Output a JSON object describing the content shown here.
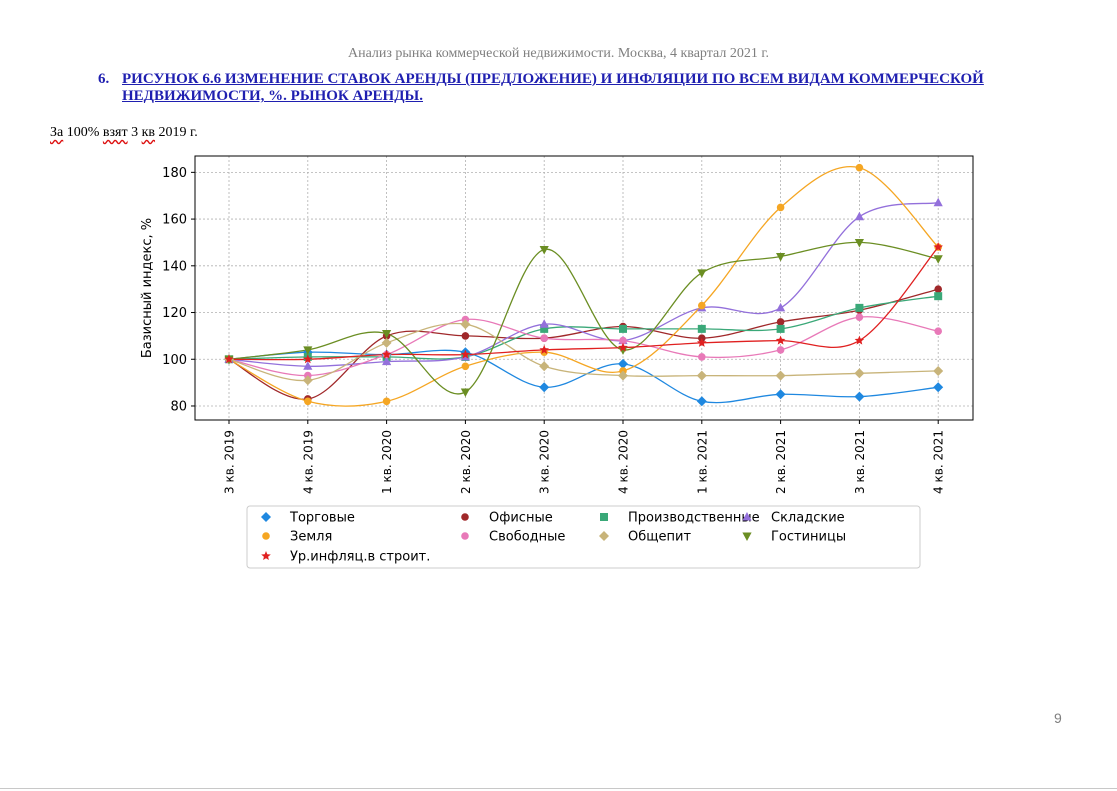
{
  "document": {
    "header": "Анализ рынка коммерческой недвижимости.  Москва, 4 квартал 2021 г.",
    "figure_number": "6.",
    "figure_title": "РИСУНОК 6.6 ИЗМЕНЕНИЕ СТАВОК АРЕНДЫ (ПРЕДЛОЖЕНИЕ) И ИНФЛЯЦИИ ПО ВСЕМ ВИДАМ КОММЕРЧЕСКОЙ НЕДВИЖИМОСТИ, %. РЫНОК АРЕНДЫ.",
    "base_note": {
      "w1": "За",
      "w2": "100%",
      "w3": "взят",
      "w4": "3",
      "w5": "кв",
      "w6": "2019 г."
    },
    "page_number": "9"
  },
  "chart_data": {
    "type": "line",
    "ylabel": "Базисный индекс, %",
    "ylim": [
      74,
      187
    ],
    "yticks": [
      80,
      100,
      120,
      140,
      160,
      180
    ],
    "grid": true,
    "legend_position": "bottom",
    "categories": [
      "3 кв. 2019",
      "4 кв. 2019",
      "1 кв. 2020",
      "2 кв. 2020",
      "3 кв. 2020",
      "4 кв. 2020",
      "1 кв. 2021",
      "2 кв. 2021",
      "3 кв. 2021",
      "4 кв. 2021"
    ],
    "series": [
      {
        "name": "Торговые",
        "color": "#1f88e0",
        "marker": "diamond",
        "values": [
          100,
          103,
          102,
          103,
          88,
          98,
          82,
          85,
          84,
          88
        ]
      },
      {
        "name": "Офисные",
        "color": "#a0282a",
        "marker": "circle",
        "values": [
          100,
          83,
          110,
          110,
          109,
          114,
          109,
          116,
          121,
          130
        ]
      },
      {
        "name": "Производственные",
        "color": "#3aa878",
        "marker": "square",
        "values": [
          100,
          101,
          101,
          101,
          113,
          113,
          113,
          113,
          122,
          127
        ]
      },
      {
        "name": "Складские",
        "color": "#9370db",
        "marker": "triangle-up",
        "values": [
          100,
          97,
          99,
          101,
          115,
          108,
          122,
          122,
          161,
          167
        ]
      },
      {
        "name": "Земля",
        "color": "#f5a623",
        "marker": "circle",
        "values": [
          100,
          82,
          82,
          97,
          103,
          95,
          123,
          165,
          182,
          148
        ]
      },
      {
        "name": "Свободные",
        "color": "#e879b8",
        "marker": "circle",
        "values": [
          100,
          93,
          102,
          117,
          109,
          108,
          101,
          104,
          118,
          112
        ]
      },
      {
        "name": "Общепит",
        "color": "#c8b47a",
        "marker": "diamond",
        "values": [
          100,
          91,
          107,
          115,
          97,
          93,
          93,
          93,
          94,
          95
        ]
      },
      {
        "name": "Гостиницы",
        "color": "#6b8e23",
        "marker": "triangle-down",
        "values": [
          100,
          104,
          111,
          86,
          147,
          104,
          137,
          144,
          150,
          143
        ]
      },
      {
        "name": "Ур.инфляц.в строит.",
        "color": "#e02020",
        "marker": "star",
        "values": [
          100,
          100,
          102,
          102,
          104,
          105,
          107,
          108,
          108,
          148
        ]
      }
    ]
  }
}
